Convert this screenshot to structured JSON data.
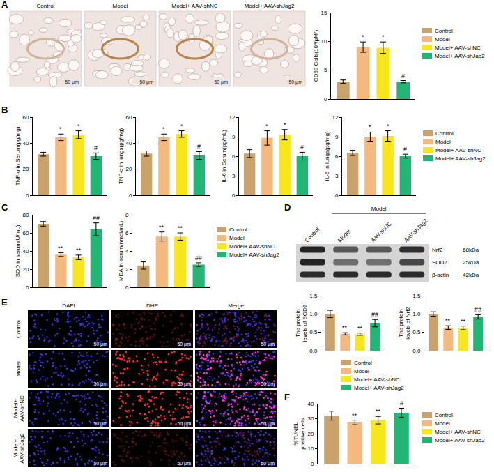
{
  "panel_labels": [
    "A",
    "B",
    "C",
    "D",
    "E",
    "F"
  ],
  "micrographs": {
    "panels": [
      "Control",
      "Model",
      "Model+ AAV-shNC",
      "Model+ AAV-shJag2"
    ],
    "scale_bar": "50 μm"
  },
  "blot": {
    "group_label": "Model",
    "lanes": [
      "Control",
      "Model",
      "AAV-shNC",
      "AAV-shJag2"
    ],
    "bands": [
      {
        "name": "Nrf2",
        "size": "68kDa"
      },
      {
        "name": "SOD2",
        "size": "25kDa"
      },
      {
        "name": "β-actin",
        "size": "42kDa"
      }
    ]
  },
  "fluorescence": {
    "columns": [
      "DAPI",
      "DHE",
      "Merge"
    ],
    "rows": [
      "Control",
      "Model",
      "Model+ AAV-shNC",
      "Model+ AAV-shJag2"
    ],
    "scale_bar": "50 μm"
  },
  "chart_data": [
    {
      "type": "bar",
      "y_label": "CD68 Cells(10⁴/μM²)",
      "categories": [
        "Control",
        "Model",
        "Model+ AAV-shNC",
        "Model+ AAV-shJag2"
      ],
      "values": [
        3.0,
        9.0,
        8.9,
        3.0
      ],
      "errors": [
        0.3,
        0.9,
        1.0,
        0.2
      ],
      "annotations": [
        null,
        "*",
        "*",
        "#"
      ],
      "colors": [
        "#c9a36b",
        "#f4b97f",
        "#f7e61c",
        "#22b573"
      ],
      "ylim": [
        0,
        15
      ],
      "yticks": [
        0,
        5,
        10,
        15
      ],
      "grid": false,
      "tick_labels": "y",
      "legend": "right"
    },
    {
      "type": "bar",
      "y_label": "TNF-α in Serum(pg/mg)",
      "categories": [
        "Control",
        "Model",
        "Model+ AAV-shNC",
        "Model+ AAV-shJag2"
      ],
      "values": [
        31.5,
        44.5,
        46.5,
        30
      ],
      "errors": [
        1.5,
        2.5,
        3,
        2.5
      ],
      "annotations": [
        null,
        "*",
        "*",
        "#"
      ],
      "colors": [
        "#c9a36b",
        "#f4b97f",
        "#f7e61c",
        "#22b573"
      ],
      "ylim": [
        0,
        60
      ],
      "yticks": [
        0,
        20,
        40,
        60
      ],
      "grid": false,
      "tick_labels": "y"
    },
    {
      "type": "bar",
      "y_label": "TNF-α in lungs(pg/mg)",
      "categories": [
        "Control",
        "Model",
        "Model+ AAV-shNC",
        "Model+ AAV-shJag2"
      ],
      "values": [
        32,
        44.5,
        47,
        30.5
      ],
      "errors": [
        2,
        2.5,
        2.5,
        3
      ],
      "annotations": [
        null,
        "*",
        "*",
        "#"
      ],
      "colors": [
        "#c9a36b",
        "#f4b97f",
        "#f7e61c",
        "#22b573"
      ],
      "ylim": [
        0,
        60
      ],
      "yticks": [
        0,
        20,
        40,
        60
      ],
      "grid": false,
      "tick_labels": "y"
    },
    {
      "type": "bar",
      "y_label": "IL-6 in Serum(pg/mL)",
      "categories": [
        "Control",
        "Model",
        "Model+ AAV-shNC",
        "Model+ AAV-shJag2"
      ],
      "values": [
        6.4,
        8.8,
        9.3,
        6.0
      ],
      "errors": [
        0.6,
        1.1,
        0.8,
        0.6
      ],
      "annotations": [
        null,
        "*",
        "*",
        "#"
      ],
      "colors": [
        "#c9a36b",
        "#f4b97f",
        "#f7e61c",
        "#22b573"
      ],
      "ylim": [
        0,
        12
      ],
      "yticks": [
        0,
        3,
        6,
        9,
        12
      ],
      "grid": false,
      "tick_labels": "y"
    },
    {
      "type": "bar",
      "y_label": "IL-6 in lungs(pg/mg)",
      "categories": [
        "Control",
        "Model",
        "Model+ AAV-shNC",
        "Model+ AAV-shJag2"
      ],
      "values": [
        6.5,
        9.0,
        9.1,
        6.0
      ],
      "errors": [
        0.4,
        0.7,
        0.8,
        0.3
      ],
      "annotations": [
        null,
        "*",
        "*",
        "#"
      ],
      "colors": [
        "#c9a36b",
        "#f4b97f",
        "#f7e61c",
        "#22b573"
      ],
      "ylim": [
        0,
        12
      ],
      "yticks": [
        0,
        3,
        6,
        9,
        12
      ],
      "grid": false,
      "tick_labels": "y",
      "legend": "right"
    },
    {
      "type": "bar",
      "y_label": "SOD in serum(U/mL)",
      "categories": [
        "Control",
        "Model",
        "Model+ AAV-shNC",
        "Model+ AAV-shJag2"
      ],
      "values": [
        70,
        36,
        33,
        64
      ],
      "errors": [
        2.5,
        2,
        2.5,
        7
      ],
      "annotations": [
        null,
        "**",
        "**",
        "##"
      ],
      "colors": [
        "#c9a36b",
        "#f4b97f",
        "#f7e61c",
        "#22b573"
      ],
      "ylim": [
        0,
        80
      ],
      "yticks": [
        0,
        20,
        40,
        60,
        80
      ],
      "grid": false,
      "tick_labels": "y"
    },
    {
      "type": "bar",
      "y_label": "MDA in serum(nmol/mL)",
      "categories": [
        "Control",
        "Model",
        "Model+ AAV-shNC",
        "Model+ AAV-shJag2"
      ],
      "values": [
        2.4,
        5.6,
        5.6,
        2.5
      ],
      "errors": [
        0.4,
        0.5,
        0.4,
        0.2
      ],
      "annotations": [
        null,
        "**",
        "**",
        "##"
      ],
      "colors": [
        "#c9a36b",
        "#f4b97f",
        "#f7e61c",
        "#22b573"
      ],
      "ylim": [
        0,
        8
      ],
      "yticks": [
        0,
        2,
        4,
        6,
        8
      ],
      "grid": false,
      "tick_labels": "y",
      "legend": "right"
    },
    {
      "type": "bar",
      "y_label": "The protein levels of SOD2",
      "categories": [
        "Control",
        "Model",
        "Model+ AAV-shNC",
        "Model+ AAV-shJag2"
      ],
      "values": [
        1.0,
        0.46,
        0.45,
        0.75
      ],
      "errors": [
        0.1,
        0.03,
        0.03,
        0.1
      ],
      "annotations": [
        null,
        "**",
        "**",
        "##"
      ],
      "colors": [
        "#c9a36b",
        "#f4b97f",
        "#f7e61c",
        "#22b573"
      ],
      "ylim": [
        0,
        1.5
      ],
      "yticks": [
        {
          "value": 0,
          "label": "0.0"
        },
        0.5,
        {
          "value": 1,
          "label": "1.0"
        },
        1.5
      ],
      "grid": false,
      "tick_labels": "y"
    },
    {
      "type": "bar",
      "y_label": "The protein levels of Nrf2",
      "categories": [
        "Control",
        "Model",
        "Model+ AAV-shNC",
        "Model+ AAV-shJag2"
      ],
      "values": [
        1.0,
        0.63,
        0.62,
        0.92
      ],
      "errors": [
        0.06,
        0.05,
        0.05,
        0.06
      ],
      "annotations": [
        null,
        "**",
        "**",
        "##"
      ],
      "colors": [
        "#c9a36b",
        "#f4b97f",
        "#f7e61c",
        "#22b573"
      ],
      "ylim": [
        0,
        1.5
      ],
      "yticks": [
        {
          "value": 0,
          "label": "0.0"
        },
        0.5,
        {
          "value": 1,
          "label": "1.0"
        },
        1.5
      ],
      "grid": false,
      "tick_labels": "y",
      "legend": "bottom"
    },
    {
      "type": "bar",
      "y_label": "%TUNEL positive cells",
      "categories": [
        "Control",
        "Model",
        "Model+ AAV-shNC",
        "Model+ AAV-shJag2"
      ],
      "values": [
        32,
        27.5,
        29,
        34
      ],
      "errors": [
        3,
        1.5,
        2.5,
        3
      ],
      "annotations": [
        null,
        "**",
        "**",
        "#"
      ],
      "colors": [
        "#c9a36b",
        "#f4b97f",
        "#f7e61c",
        "#22b573"
      ],
      "ylim": [
        0,
        40
      ],
      "yticks": [
        0,
        10,
        20,
        30,
        40
      ],
      "grid": false,
      "tick_labels": "y",
      "legend": "right"
    }
  ]
}
